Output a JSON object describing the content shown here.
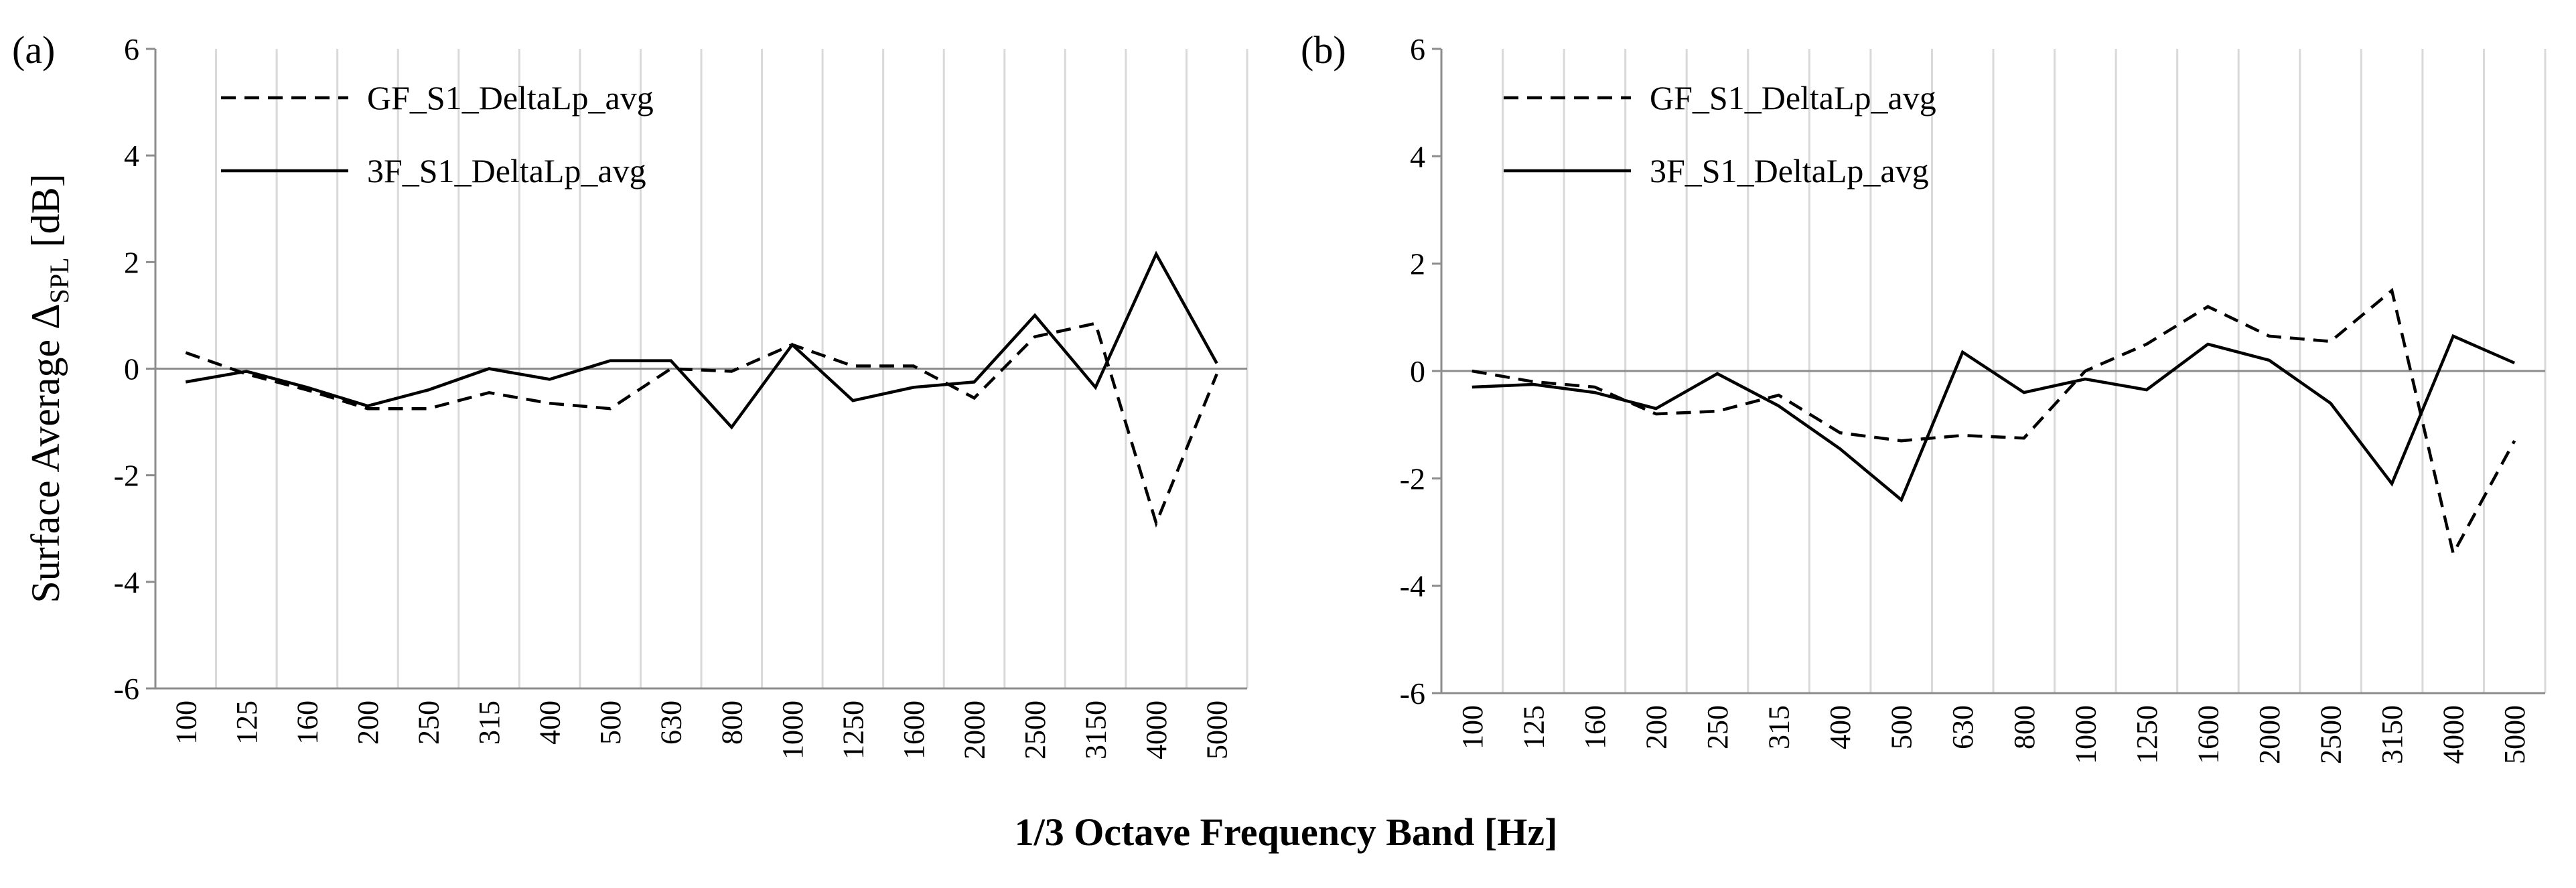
{
  "figure": {
    "ylabel_prefix": "Surface Average Δ",
    "ylabel_sub": "SPL",
    "ylabel_suffix": " [dB]",
    "xlabel": "1/3 Octave Frequency Band [Hz]"
  },
  "chart_data": [
    {
      "type": "line",
      "panel_label": "(a)",
      "categories": [
        "100",
        "125",
        "160",
        "200",
        "250",
        "315",
        "400",
        "500",
        "630",
        "800",
        "1000",
        "1250",
        "1600",
        "2000",
        "2500",
        "3150",
        "4000",
        "5000"
      ],
      "ylim": [
        -6,
        6
      ],
      "yticks": [
        "-6",
        "-4",
        "-2",
        "0",
        "2",
        "4",
        "6"
      ],
      "xlabel": "1/3 Octave Frequency Band [Hz]",
      "ylabel": "Surface Average ΔSPL [dB]",
      "grid": true,
      "legend_position": "top-left",
      "series": [
        {
          "name": "GF_S1_DeltaLp_avg",
          "style": "dashed",
          "values": [
            0.3,
            -0.1,
            -0.4,
            -0.75,
            -0.75,
            -0.45,
            -0.65,
            -0.75,
            0.0,
            -0.05,
            0.45,
            0.05,
            0.05,
            -0.55,
            0.6,
            0.85,
            -2.9,
            -0.1
          ]
        },
        {
          "name": "3F_S1_DeltaLp_avg",
          "style": "solid",
          "values": [
            -0.25,
            -0.05,
            -0.35,
            -0.7,
            -0.4,
            0.0,
            -0.2,
            0.15,
            0.15,
            -1.1,
            0.45,
            -0.6,
            -0.35,
            -0.25,
            1.0,
            -0.35,
            2.15,
            0.1
          ]
        }
      ]
    },
    {
      "type": "line",
      "panel_label": "(b)",
      "categories": [
        "100",
        "125",
        "160",
        "200",
        "250",
        "315",
        "400",
        "500",
        "630",
        "800",
        "1000",
        "1250",
        "1600",
        "2000",
        "2500",
        "3150",
        "4000",
        "5000"
      ],
      "ylim": [
        -6,
        6
      ],
      "yticks": [
        "-6",
        "-4",
        "-2",
        "0",
        "2",
        "4",
        "6"
      ],
      "xlabel": "1/3 Octave Frequency Band [Hz]",
      "ylabel": "Surface Average ΔSPL [dB]",
      "grid": true,
      "legend_position": "top-left",
      "series": [
        {
          "name": "GF_S1_DeltaLp_avg",
          "style": "dashed",
          "values": [
            0.0,
            -0.2,
            -0.3,
            -0.8,
            -0.75,
            -0.45,
            -1.15,
            -1.3,
            -1.2,
            -1.25,
            0.0,
            0.5,
            1.2,
            0.65,
            0.55,
            1.5,
            -3.4,
            -1.3
          ]
        },
        {
          "name": "3F_S1_DeltaLp_avg",
          "style": "solid",
          "values": [
            -0.3,
            -0.25,
            -0.4,
            -0.7,
            -0.05,
            -0.65,
            -1.45,
            -2.4,
            0.35,
            -0.4,
            -0.15,
            -0.35,
            0.5,
            0.2,
            -0.6,
            -2.1,
            0.65,
            0.15
          ]
        }
      ]
    }
  ]
}
